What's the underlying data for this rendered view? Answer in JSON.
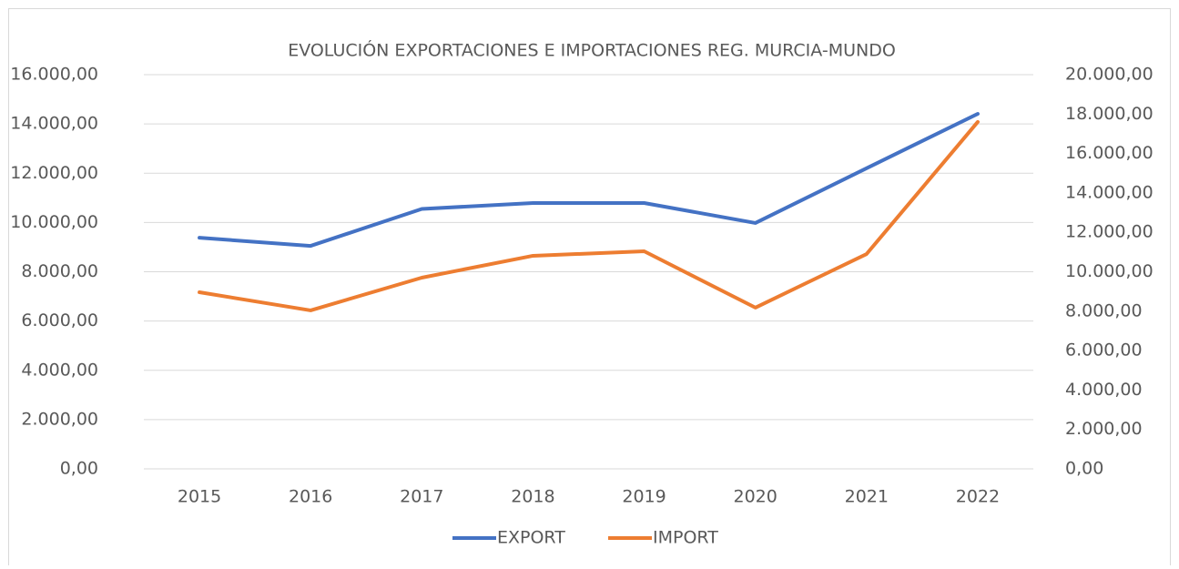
{
  "chart_data": {
    "type": "line",
    "title": "EVOLUCIÓN EXPORTACIONES E IMPORTACIONES REG. MURCIA-MUNDO",
    "categories": [
      "2015",
      "2016",
      "2017",
      "2018",
      "2019",
      "2020",
      "2021",
      "2022"
    ],
    "series": [
      {
        "name": "EXPORT",
        "color": "#4472c4",
        "values": [
          9380,
          9050,
          10550,
          10790,
          10790,
          9980,
          12200,
          14410
        ]
      },
      {
        "name": "IMPORT",
        "color": "#ed7d31",
        "axis": "y2",
        "values": [
          8960,
          8040,
          9700,
          10810,
          11040,
          8180,
          10900,
          17600
        ]
      }
    ],
    "ylim": [
      0,
      16000
    ],
    "yticks": [
      {
        "value": 0,
        "label": "0,00"
      },
      {
        "value": 2000,
        "label": "2.000,00"
      },
      {
        "value": 4000,
        "label": "4.000,00"
      },
      {
        "value": 6000,
        "label": "6.000,00"
      },
      {
        "value": 8000,
        "label": "8.000,00"
      },
      {
        "value": 10000,
        "label": "10.000,00"
      },
      {
        "value": 12000,
        "label": "12.000,00"
      },
      {
        "value": 14000,
        "label": "14.000,00"
      },
      {
        "value": 16000,
        "label": "16.000,00"
      }
    ],
    "y2lim": [
      0,
      20000
    ],
    "y2ticks": [
      {
        "value": 0,
        "label": "0,00"
      },
      {
        "value": 2000,
        "label": "2.000,00"
      },
      {
        "value": 4000,
        "label": "4.000,00"
      },
      {
        "value": 6000,
        "label": "6.000,00"
      },
      {
        "value": 8000,
        "label": "8.000,00"
      },
      {
        "value": 10000,
        "label": "10.000,00"
      },
      {
        "value": 12000,
        "label": "12.000,00"
      },
      {
        "value": 14000,
        "label": "14.000,00"
      },
      {
        "value": 16000,
        "label": "16.000,00"
      },
      {
        "value": 18000,
        "label": "18.000,00"
      },
      {
        "value": 20000,
        "label": "20.000,00"
      }
    ],
    "grid": true,
    "legend": "bottom"
  }
}
